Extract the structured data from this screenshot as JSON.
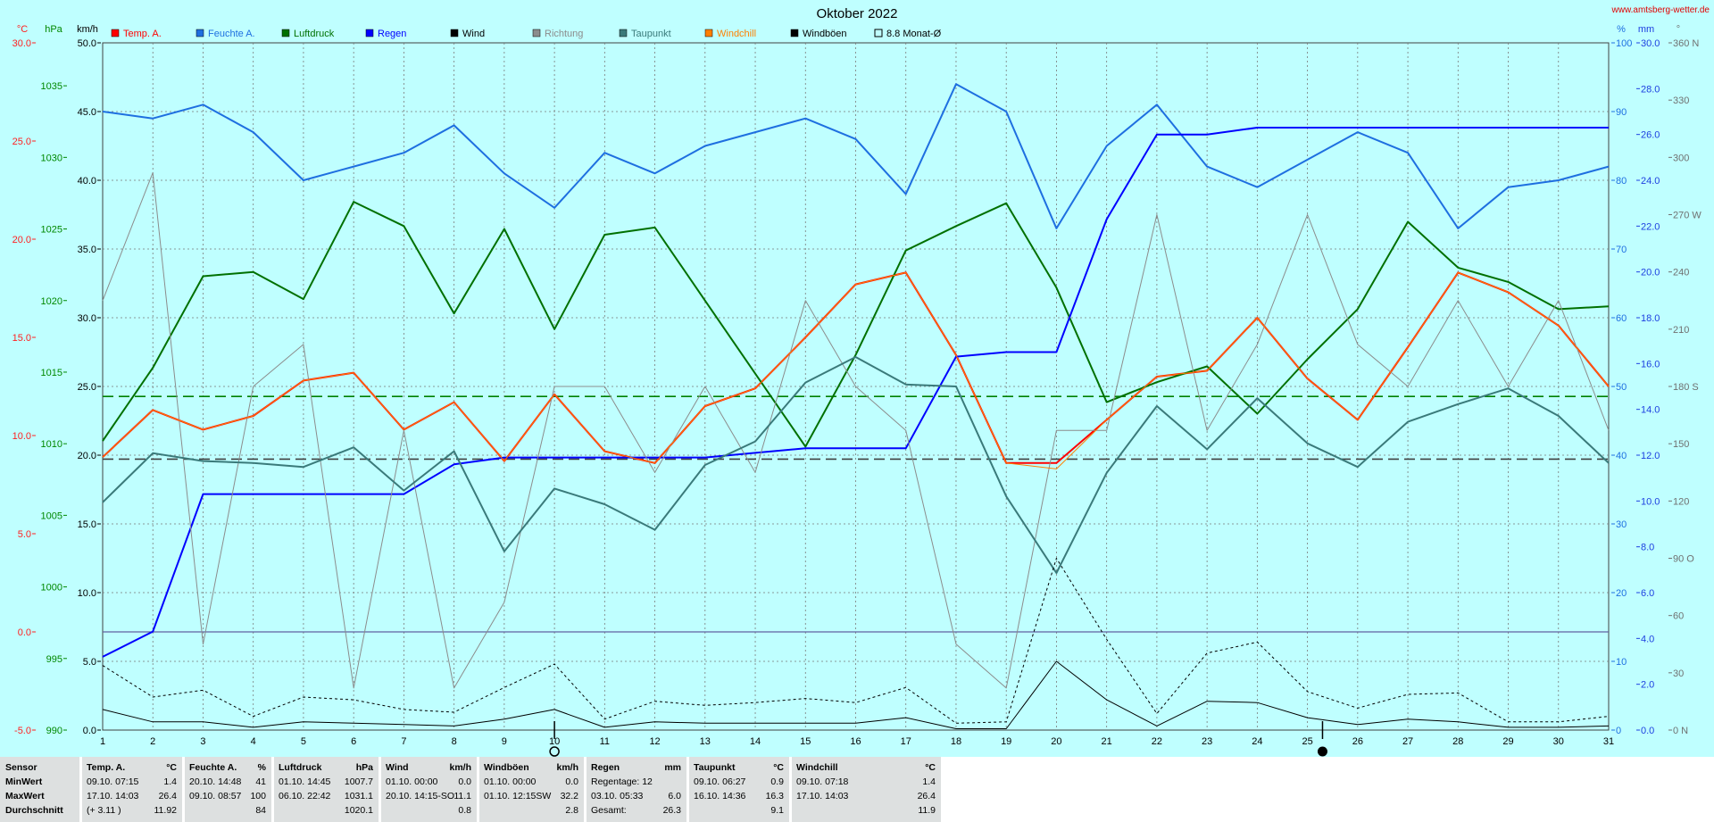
{
  "site": "www.amtsberg-wetter.de",
  "chart_data": {
    "type": "line",
    "title": "Oktober 2022",
    "x": [
      1,
      2,
      3,
      4,
      5,
      6,
      7,
      8,
      9,
      10,
      11,
      12,
      13,
      14,
      15,
      16,
      17,
      18,
      19,
      20,
      21,
      22,
      23,
      24,
      25,
      26,
      27,
      28,
      29,
      30,
      31
    ],
    "xlim": [
      1,
      31
    ],
    "legend_placement": "top",
    "grid": true,
    "axes": [
      {
        "unit": "°C",
        "side": "left",
        "min": -5,
        "max": 30,
        "ticks": [
          "30.0",
          "25.0",
          "20.0",
          "15.0",
          "10.0",
          "5.0",
          "0.0",
          "-5.0"
        ],
        "color": "#ff2020"
      },
      {
        "unit": "hPa",
        "side": "left",
        "min": 990,
        "max": 1038,
        "ticks": [
          "1035",
          "1030",
          "1025",
          "1020",
          "1015",
          "1010",
          "1005",
          "1000",
          "995",
          "990"
        ],
        "color": "#008800"
      },
      {
        "unit": "km/h",
        "side": "left",
        "min": 0,
        "max": 50,
        "ticks": [
          "50.0",
          "45.0",
          "40.0",
          "35.0",
          "30.0",
          "25.0",
          "20.0",
          "15.0",
          "10.0",
          "5.0",
          "0.0"
        ],
        "color": "#000000"
      },
      {
        "unit": "%",
        "side": "right",
        "min": 0,
        "max": 100,
        "ticks": [
          "100",
          "90",
          "80",
          "70",
          "60",
          "50",
          "40",
          "30",
          "20",
          "10",
          "0"
        ],
        "color": "#1e6fe0"
      },
      {
        "unit": "mm",
        "side": "right",
        "min": 0,
        "max": 30,
        "ticks": [
          "30.0",
          "28.0",
          "26.0",
          "24.0",
          "22.0",
          "20.0",
          "18.0",
          "16.0",
          "14.0",
          "12.0",
          "10.0",
          "8.0",
          "6.0",
          "4.0",
          "2.0",
          "0.0"
        ],
        "color": "#1e40e0"
      },
      {
        "unit": "°",
        "side": "right",
        "min": 0,
        "max": 360,
        "ticks": [
          "360 N",
          "330",
          "300",
          "270 W",
          "240",
          "210",
          "180 S",
          "150",
          "120",
          "90 O",
          "60",
          "30",
          "0 N"
        ],
        "color": "#707070"
      }
    ],
    "series": [
      {
        "name": "Temp. A.",
        "axis": "°C",
        "color": "#ff0000",
        "width": 2,
        "values": [
          8.9,
          11.3,
          10.3,
          11.0,
          12.8,
          13.2,
          10.3,
          11.7,
          8.7,
          12.1,
          9.2,
          8.6,
          11.5,
          12.4,
          15.0,
          17.7,
          18.3,
          14.1,
          8.6,
          8.6,
          10.8,
          13.0,
          13.3,
          16.0,
          12.9,
          10.8,
          14.5,
          18.3,
          17.3,
          15.6,
          12.5
        ]
      },
      {
        "name": "Feuchte A.",
        "axis": "%",
        "color": "#1e6fe0",
        "width": 2,
        "values": [
          90,
          89,
          91,
          87,
          80,
          82,
          84,
          88,
          81,
          76,
          84,
          81,
          85,
          87,
          89,
          86,
          78,
          94,
          90,
          73,
          85,
          91,
          82,
          79,
          83,
          87,
          84,
          73,
          79,
          80,
          82
        ]
      },
      {
        "name": "Luftdruck",
        "axis": "hPa",
        "color": "#007000",
        "width": 2,
        "values": [
          1010.2,
          1015.3,
          1021.7,
          1022.0,
          1020.1,
          1026.9,
          1025.2,
          1019.1,
          1025.0,
          1018.0,
          1024.6,
          1025.1,
          1020.0,
          1014.9,
          1009.8,
          1016.2,
          1023.5,
          1025.2,
          1026.8,
          1020.9,
          1012.9,
          1014.3,
          1015.4,
          1012.1,
          1015.9,
          1019.4,
          1025.5,
          1022.3,
          1021.3,
          1019.4,
          1019.6
        ]
      },
      {
        "name": "Regen",
        "axis": "mm",
        "color": "#0000ff",
        "width": 2,
        "values": [
          3.2,
          4.3,
          10.3,
          10.3,
          10.3,
          10.3,
          10.3,
          11.6,
          11.9,
          11.9,
          11.9,
          11.9,
          11.9,
          12.1,
          12.3,
          12.3,
          12.3,
          16.3,
          16.5,
          16.5,
          22.3,
          26.0,
          26.0,
          26.3,
          26.3,
          26.3,
          26.3,
          26.3,
          26.3,
          26.3,
          26.3
        ]
      },
      {
        "name": "Wind",
        "axis": "km/h",
        "color": "#000000",
        "width": 1,
        "values": [
          1.5,
          0.6,
          0.6,
          0.2,
          0.6,
          0.5,
          0.4,
          0.3,
          0.8,
          1.5,
          0.2,
          0.6,
          0.5,
          0.5,
          0.5,
          0.5,
          0.9,
          0.1,
          0.1,
          5.0,
          2.2,
          0.3,
          2.1,
          2.0,
          0.9,
          0.4,
          0.8,
          0.6,
          0.2,
          0.2,
          0.3
        ]
      },
      {
        "name": "Richtung",
        "axis": "°",
        "color": "#8c8c8c",
        "width": 1,
        "values": [
          225,
          292,
          45,
          180,
          202,
          22,
          157,
          22,
          67,
          180,
          180,
          135,
          180,
          135,
          225,
          180,
          157,
          45,
          22,
          157,
          157,
          270,
          157,
          202,
          270,
          202,
          180,
          225,
          180,
          225,
          157
        ]
      },
      {
        "name": "Taupunkt",
        "axis": "°C",
        "color": "#3a7a7a",
        "width": 2,
        "values": [
          6.6,
          9.1,
          8.7,
          8.6,
          8.4,
          9.4,
          7.2,
          9.2,
          4.1,
          7.3,
          6.5,
          5.2,
          8.5,
          9.7,
          12.7,
          14.0,
          12.6,
          12.5,
          6.9,
          3.0,
          8.1,
          11.5,
          9.3,
          11.9,
          9.6,
          8.4,
          10.7,
          11.6,
          12.4,
          11.0,
          8.6
        ]
      },
      {
        "name": "Windchill",
        "axis": "°C",
        "color": "#ff8000",
        "width": 1,
        "values": [
          8.9,
          11.3,
          10.3,
          11.0,
          12.8,
          13.2,
          10.3,
          11.7,
          8.7,
          12.1,
          9.2,
          8.6,
          11.5,
          12.4,
          15.0,
          17.7,
          18.3,
          14.1,
          8.6,
          8.3,
          10.8,
          13.0,
          13.3,
          16.0,
          12.9,
          10.8,
          14.5,
          18.3,
          17.3,
          15.6,
          12.5
        ]
      },
      {
        "name": "Windböen",
        "axis": "km/h",
        "color": "#000000",
        "width": 1,
        "dashed": true,
        "values": [
          4.7,
          2.4,
          2.9,
          1.0,
          2.4,
          2.2,
          1.5,
          1.3,
          3.1,
          4.8,
          0.8,
          2.1,
          1.8,
          2.0,
          2.3,
          2.0,
          3.1,
          0.5,
          0.6,
          12.5,
          6.6,
          1.2,
          5.6,
          6.4,
          2.8,
          1.6,
          2.6,
          2.7,
          0.6,
          0.6,
          1.0
        ]
      }
    ],
    "reference_lines": [
      {
        "name": "8.8 Monat-Ø",
        "axis": "°C",
        "value": 8.8,
        "color": "#404040",
        "dashed": true
      },
      {
        "axis": "hPa",
        "value": 1013.3,
        "color": "#008000",
        "dashed": true
      },
      {
        "axis": "°C",
        "value": 0,
        "color": "#6060a0",
        "dashed": false
      }
    ],
    "markers": [
      {
        "x": 10,
        "symbol": "○",
        "meaning": "Vollmond"
      },
      {
        "x": 25.3,
        "symbol": "●",
        "meaning": "Neumond"
      }
    ]
  },
  "stats": {
    "rows": [
      "MinWert",
      "MaxWert",
      "Durchschnitt"
    ],
    "sensor_label": "Sensor",
    "blocks": [
      {
        "title": "Temp. A.",
        "unit": "°C",
        "min_time": "09.10.  07:15",
        "min": "1.4",
        "max_time": "17.10.  14:03",
        "max": "26.4",
        "avg_time": "(+ 3.11 )",
        "avg": "11.92"
      },
      {
        "title": "Feuchte A.",
        "unit": "%",
        "min_time": "20.10.  14:48",
        "min": "41",
        "max_time": "09.10.  08:57",
        "max": "100",
        "avg_time": "",
        "avg": "84"
      },
      {
        "title": "Luftdruck",
        "unit": "hPa",
        "min_time": "01.10.  14:45",
        "min": "1007.7",
        "max_time": "06.10.  22:42",
        "max": "1031.1",
        "avg_time": "",
        "avg": "1020.1"
      },
      {
        "title": "Wind",
        "unit": "km/h",
        "min_time": "01.10.  00:00",
        "min": "0.0",
        "max_time": "20.10.  14:15-SO",
        "max": "11.1",
        "avg_time": "",
        "avg": "0.8"
      },
      {
        "title": "Windböen",
        "unit": "km/h",
        "min_time": "01.10.  00:00",
        "min": "0.0",
        "max_time": "01.10.  12:15SW",
        "max": "32.2",
        "avg_time": "",
        "avg": "2.8"
      },
      {
        "title": "Regen",
        "unit": "mm",
        "min_time": "Regentage: 12",
        "min": "",
        "max_time": "03.10.  05:33",
        "max": "6.0",
        "avg_time": "Gesamt:",
        "avg": "26.3"
      },
      {
        "title": "Taupunkt",
        "unit": "°C",
        "min_time": "09.10.  06:27",
        "min": "0.9",
        "max_time": "16.10.  14:36",
        "max": "16.3",
        "avg_time": "",
        "avg": "9.1"
      },
      {
        "title": "Windchill",
        "unit": "°C",
        "min_time": "09.10.  07:18",
        "min": "1.4",
        "max_time": "17.10.  14:03",
        "max": "26.4",
        "avg_time": "",
        "avg": "11.9"
      }
    ]
  }
}
